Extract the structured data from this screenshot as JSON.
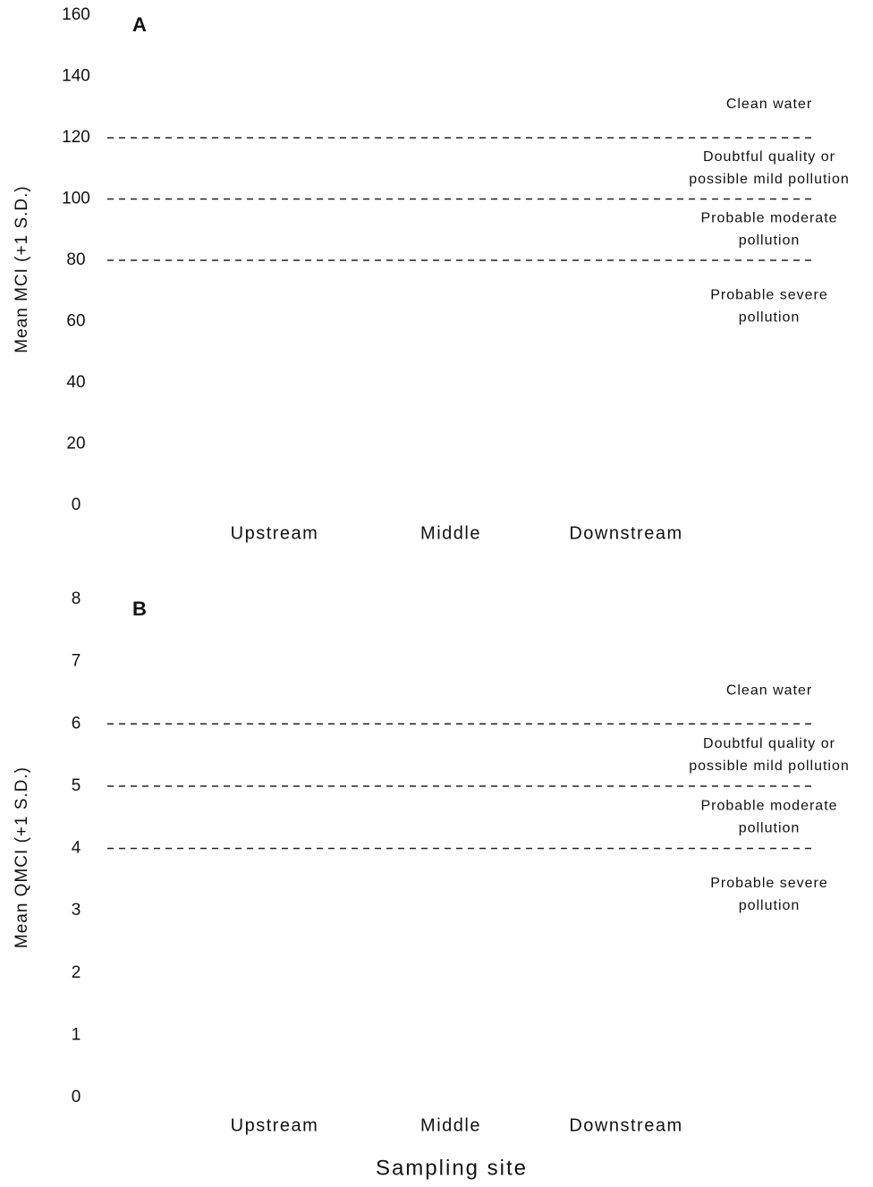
{
  "chart_data": [
    {
      "type": "bar",
      "panel_label": "A",
      "ylabel": "Mean MCI (+1 S.D.)",
      "categories": [
        "Upstream",
        "Middle",
        "Downstream"
      ],
      "ylim": [
        0,
        160
      ],
      "yticks": [
        0,
        20,
        40,
        60,
        80,
        100,
        120,
        140,
        160
      ],
      "reference_lines": [
        120,
        100,
        80
      ],
      "annotations": [
        [
          "Clean water"
        ],
        [
          "Doubtful quality or",
          "possible mild pollution"
        ],
        [
          "Probable moderate",
          "pollution"
        ],
        [
          "Probable severe",
          "pollution"
        ]
      ]
    },
    {
      "type": "bar",
      "panel_label": "B",
      "ylabel": "Mean QMCI (+1 S.D.)",
      "xlabel": "Sampling site",
      "categories": [
        "Upstream",
        "Middle",
        "Downstream"
      ],
      "ylim": [
        0,
        8
      ],
      "yticks": [
        0,
        1,
        2,
        3,
        4,
        5,
        6,
        7,
        8
      ],
      "reference_lines": [
        6,
        5,
        4
      ],
      "annotations": [
        [
          "Clean water"
        ],
        [
          "Doubtful quality or",
          "possible mild pollution"
        ],
        [
          "Probable moderate",
          "pollution"
        ],
        [
          "Probable severe",
          "pollution"
        ]
      ]
    }
  ]
}
